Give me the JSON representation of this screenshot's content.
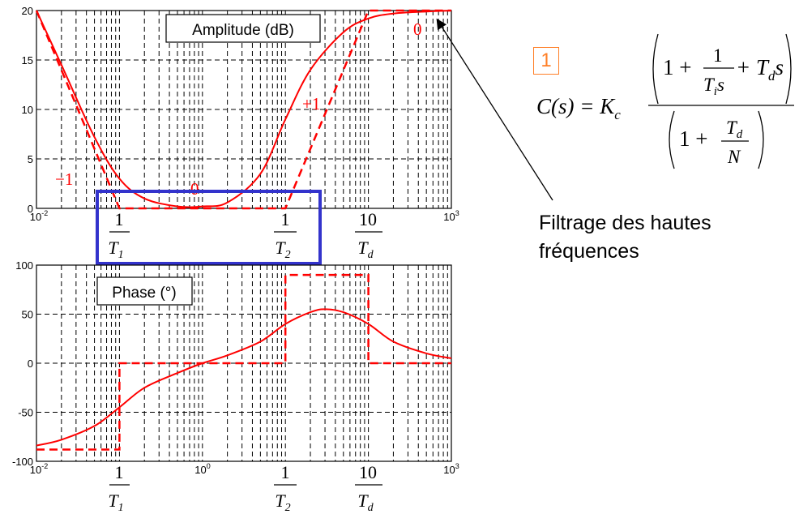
{
  "chart_data": [
    {
      "type": "line",
      "title": "Amplitude (dB)",
      "xscale": "log",
      "xlim": [
        0.01,
        1000
      ],
      "ylim": [
        0,
        20
      ],
      "x_tick_labels": [
        "10⁻²",
        "10³"
      ],
      "y_tick_labels": [
        "0",
        "5",
        "10",
        "15",
        "20"
      ],
      "x_marker_labels": [
        "1/T1",
        "1/T2",
        "10/Td"
      ],
      "grid": true,
      "series": [
        {
          "style": "solid",
          "color": "#ff0000",
          "x": [
            0.01,
            0.02,
            0.05,
            0.1,
            0.2,
            0.5,
            1,
            2,
            5,
            10,
            20,
            50,
            100,
            200,
            500,
            1000
          ],
          "y": [
            20,
            14.5,
            7.2,
            3.0,
            1.0,
            0.2,
            0.2,
            0.6,
            3.5,
            9.0,
            14.0,
            17.8,
            19.2,
            19.7,
            19.9,
            20
          ]
        },
        {
          "style": "dashed",
          "color": "#ff0000",
          "x": [
            0.01,
            0.1,
            10,
            100,
            1000
          ],
          "y": [
            20,
            0,
            0,
            20,
            20
          ]
        }
      ],
      "annotations": [
        "-1",
        "0",
        "+1",
        "0"
      ]
    },
    {
      "type": "line",
      "title": "Phase (°)",
      "xscale": "log",
      "xlim": [
        0.01,
        1000
      ],
      "ylim": [
        -100,
        100
      ],
      "x_tick_labels": [
        "10⁻²",
        "10⁰",
        "10³"
      ],
      "y_tick_labels": [
        "-100",
        "-50",
        "0",
        "50",
        "100"
      ],
      "x_marker_labels": [
        "1/T1",
        "1/T2",
        "10/Td"
      ],
      "grid": true,
      "series": [
        {
          "style": "solid",
          "color": "#ff0000",
          "x": [
            0.01,
            0.02,
            0.05,
            0.1,
            0.2,
            0.5,
            1,
            2,
            5,
            10,
            20,
            30,
            50,
            100,
            200,
            500,
            1000
          ],
          "y": [
            -84,
            -78,
            -64,
            -45,
            -25,
            -10,
            0,
            8,
            22,
            40,
            52,
            55,
            52,
            40,
            22,
            10,
            5
          ]
        },
        {
          "style": "dashed",
          "color": "#ff0000",
          "x": [
            0.01,
            0.1,
            0.1,
            10,
            10,
            100,
            100,
            1000
          ],
          "y": [
            -88,
            -88,
            0,
            0,
            90,
            90,
            0,
            0
          ]
        }
      ]
    }
  ],
  "highlight_color": "#3333cc",
  "formula": {
    "number": "1",
    "lhs": "C(s) = K",
    "lhs_sub": "c",
    "num_one": "1 +",
    "num_frac_top": "1",
    "num_frac_bot": "T",
    "num_frac_bot_sub": "i",
    "num_frac_bot_s": "s",
    "num_plus": "+ T",
    "num_td_sub": "d",
    "num_s": "s",
    "den_one": "1 +",
    "den_frac_top": "T",
    "den_frac_top_sub": "d",
    "den_frac_bot": "N"
  },
  "side_label": "Filtrage des hautes\nfréquences"
}
